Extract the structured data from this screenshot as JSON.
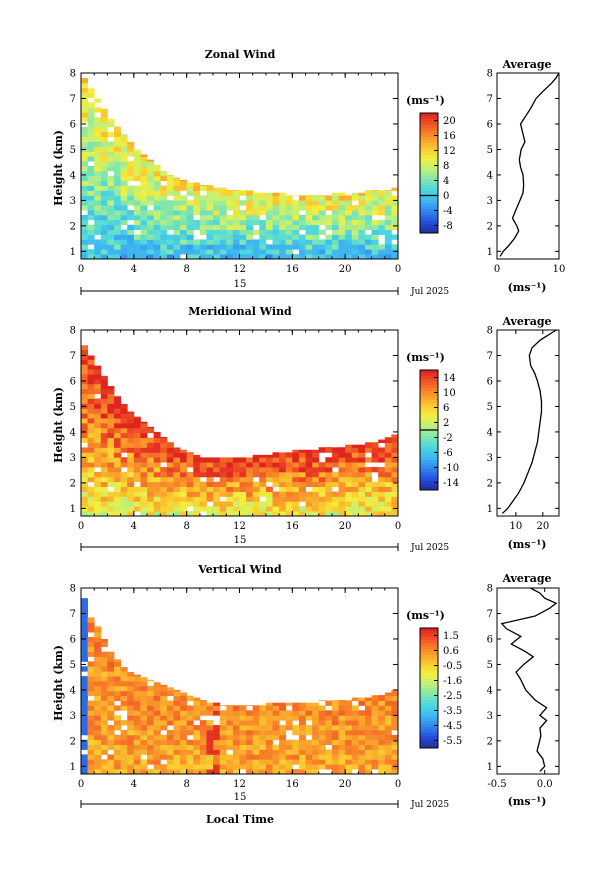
{
  "figure": {
    "x_axis_label": "Local Time",
    "date_label": "Jul 2025",
    "day_label": "15"
  },
  "chart_data": [
    {
      "type": "heatmap",
      "title": "Zonal Wind",
      "ylabel": "Height (km)",
      "xlim": [
        0,
        24
      ],
      "ylim": [
        0.7,
        8
      ],
      "x_ticks": [
        "0",
        "4",
        "8",
        "12",
        "16",
        "20",
        "0"
      ],
      "y_ticks": [
        "1",
        "2",
        "3",
        "4",
        "5",
        "6",
        "7",
        "8"
      ],
      "colorbar": {
        "unit": "(ms⁻¹)",
        "ticks": [
          "20",
          "16",
          "12",
          "8",
          "4",
          "0",
          "-4",
          "-8"
        ],
        "range": [
          -10,
          22
        ]
      },
      "top_km": [
        7.8,
        7.4,
        7.0,
        6.6,
        6.2,
        5.9,
        5.6,
        5.3,
        5.0,
        4.8,
        4.6,
        4.4,
        4.2,
        4.0,
        3.9,
        3.8,
        3.7,
        3.7,
        3.6,
        3.6,
        3.5,
        3.5,
        3.4,
        3.4,
        3.4,
        3.4,
        3.3,
        3.3,
        3.3,
        3.3,
        3.3,
        3.2,
        3.2,
        3.2,
        3.2,
        3.2,
        3.2,
        3.2,
        3.3,
        3.3,
        3.3,
        3.3,
        3.3,
        3.4,
        3.4,
        3.4,
        3.4,
        3.5
      ],
      "field": {
        "base": 5,
        "bottom": 0,
        "top": 12,
        "vary": 4
      },
      "average": {
        "title": "Average",
        "xlabel": "(ms⁻¹)",
        "xlim": [
          0,
          10
        ],
        "x_ticks": [
          "0",
          "10"
        ],
        "heights": [
          0.8,
          1.0,
          1.2,
          1.5,
          1.8,
          2.0,
          2.3,
          2.6,
          3.0,
          3.3,
          3.6,
          4.0,
          4.3,
          4.6,
          5.0,
          5.3,
          5.6,
          6.0,
          6.3,
          6.6,
          7.0,
          7.3,
          7.6,
          7.8,
          8.0
        ],
        "values": [
          0.5,
          1.0,
          1.8,
          2.8,
          3.5,
          3.2,
          2.5,
          3.0,
          3.7,
          4.2,
          4.3,
          4.2,
          3.8,
          3.6,
          3.9,
          4.5,
          4.2,
          3.8,
          4.6,
          5.4,
          6.3,
          7.5,
          8.8,
          9.5,
          10.0
        ]
      }
    },
    {
      "type": "heatmap",
      "title": "Meridional Wind",
      "ylabel": "Height (km)",
      "xlim": [
        0,
        24
      ],
      "ylim": [
        0.7,
        8
      ],
      "x_ticks": [
        "0",
        "4",
        "8",
        "12",
        "16",
        "20",
        "0"
      ],
      "y_ticks": [
        "1",
        "2",
        "3",
        "4",
        "5",
        "6",
        "7",
        "8"
      ],
      "colorbar": {
        "unit": "(ms⁻¹)",
        "ticks": [
          "14",
          "10",
          "6",
          "2",
          "-2",
          "-6",
          "-10",
          "-14"
        ],
        "range": [
          -16,
          16
        ]
      },
      "top_km": [
        7.4,
        7.0,
        6.6,
        6.2,
        5.8,
        5.4,
        5.1,
        4.8,
        4.6,
        4.4,
        4.2,
        4.0,
        3.8,
        3.6,
        3.4,
        3.3,
        3.2,
        3.1,
        3.0,
        3.0,
        3.0,
        3.0,
        3.0,
        3.0,
        3.0,
        3.0,
        3.1,
        3.1,
        3.1,
        3.2,
        3.2,
        3.2,
        3.3,
        3.3,
        3.3,
        3.3,
        3.4,
        3.4,
        3.4,
        3.4,
        3.5,
        3.5,
        3.5,
        3.6,
        3.6,
        3.7,
        3.8,
        3.9
      ],
      "field": {
        "base": 10,
        "bottom": 4,
        "top": 16,
        "vary": 4
      },
      "average": {
        "title": "Average",
        "xlabel": "(ms⁻¹)",
        "xlim": [
          3,
          26
        ],
        "x_ticks": [
          "10",
          "20"
        ],
        "heights": [
          0.8,
          1.0,
          1.3,
          1.6,
          2.0,
          2.4,
          2.8,
          3.2,
          3.6,
          4.0,
          4.4,
          4.8,
          5.2,
          5.6,
          6.0,
          6.3,
          6.6,
          7.0,
          7.3,
          7.6,
          7.8,
          8.0
        ],
        "values": [
          5.0,
          7.0,
          9.0,
          11.0,
          13.0,
          14.5,
          16.0,
          17.0,
          18.0,
          18.5,
          19.0,
          19.5,
          19.5,
          19.0,
          18.0,
          17.0,
          15.5,
          15.0,
          16.0,
          19.0,
          22.0,
          25.0
        ]
      }
    },
    {
      "type": "heatmap",
      "title": "Vertical Wind",
      "ylabel": "Height (km)",
      "xlim": [
        0,
        24
      ],
      "ylim": [
        0.7,
        8
      ],
      "x_ticks": [
        "0",
        "4",
        "8",
        "12",
        "16",
        "20",
        "0"
      ],
      "y_ticks": [
        "1",
        "2",
        "3",
        "4",
        "5",
        "6",
        "7",
        "8"
      ],
      "colorbar": {
        "unit": "(ms⁻¹)",
        "ticks": [
          "1.5",
          "0.6",
          "-0.5",
          "-1.6",
          "-2.5",
          "-3.5",
          "-4.5",
          "-5.5"
        ],
        "range": [
          -6.0,
          2.0
        ]
      },
      "top_km": [
        7.6,
        7.0,
        6.5,
        6.0,
        5.5,
        5.2,
        4.9,
        4.7,
        4.6,
        4.5,
        4.4,
        4.3,
        4.2,
        4.1,
        4.0,
        3.9,
        3.8,
        3.7,
        3.6,
        3.5,
        3.5,
        3.4,
        3.4,
        3.4,
        3.4,
        3.4,
        3.4,
        3.4,
        3.5,
        3.5,
        3.5,
        3.5,
        3.5,
        3.5,
        3.5,
        3.5,
        3.6,
        3.6,
        3.6,
        3.6,
        3.6,
        3.7,
        3.7,
        3.7,
        3.8,
        3.8,
        3.9,
        4.0
      ],
      "field": {
        "base": 0.6,
        "bottom": 0.2,
        "top": 0.6,
        "vary": 0.7
      },
      "average": {
        "title": "Average",
        "xlabel": "(ms⁻¹)",
        "xlim": [
          -0.5,
          0.15
        ],
        "x_ticks": [
          "-0.5",
          "0.0"
        ],
        "heights": [
          0.8,
          1.0,
          1.3,
          1.6,
          1.9,
          2.2,
          2.5,
          2.8,
          3.0,
          3.3,
          3.6,
          4.0,
          4.4,
          4.7,
          5.0,
          5.3,
          5.5,
          5.8,
          6.1,
          6.4,
          6.6,
          6.9,
          7.2,
          7.4,
          7.6,
          7.8,
          8.0
        ],
        "values": [
          -0.05,
          0.0,
          -0.02,
          -0.08,
          -0.06,
          -0.04,
          -0.05,
          0.02,
          -0.05,
          0.02,
          -0.1,
          -0.2,
          -0.25,
          -0.3,
          -0.22,
          -0.12,
          -0.2,
          -0.35,
          -0.25,
          -0.4,
          -0.45,
          -0.1,
          0.05,
          0.12,
          0.0,
          -0.05,
          -0.15
        ]
      }
    }
  ]
}
